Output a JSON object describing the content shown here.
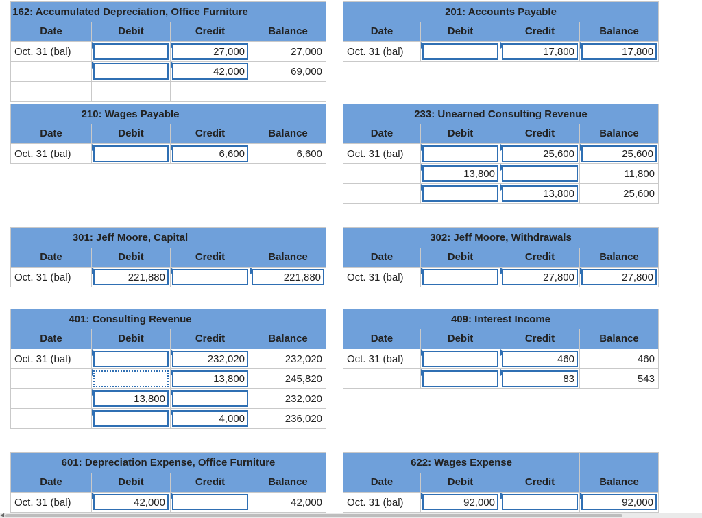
{
  "columns": {
    "date": "Date",
    "debit": "Debit",
    "credit": "Credit",
    "balance": "Balance"
  },
  "accounts": [
    {
      "key": "a162",
      "title": "162: Accumulated Depreciation, Office Furniture",
      "rows": [
        {
          "date": "Oct. 31 (bal)",
          "debit": "",
          "credit": "27,000",
          "balance": "27,000"
        },
        {
          "date": "",
          "debit": "",
          "credit": "42,000",
          "balance": "69,000"
        },
        {
          "date": "",
          "debit": "",
          "credit": "",
          "balance": ""
        }
      ]
    },
    {
      "key": "a201",
      "title": "201: Accounts Payable",
      "rows": [
        {
          "date": "Oct. 31 (bal)",
          "debit": "",
          "credit": "17,800",
          "balance": "17,800"
        }
      ]
    },
    {
      "key": "a210",
      "title": "210: Wages Payable",
      "rows": [
        {
          "date": "Oct. 31 (bal)",
          "debit": "",
          "credit": "6,600",
          "balance": "6,600"
        }
      ]
    },
    {
      "key": "a233",
      "title": "233: Unearned Consulting Revenue",
      "rows": [
        {
          "date": "Oct. 31 (bal)",
          "debit": "",
          "credit": "25,600",
          "balance": "25,600"
        },
        {
          "date": "",
          "debit": "13,800",
          "credit": "",
          "balance": "11,800"
        },
        {
          "date": "",
          "debit": "",
          "credit": "13,800",
          "balance": "25,600"
        }
      ]
    },
    {
      "key": "a301",
      "title": "301: Jeff Moore, Capital",
      "rows": [
        {
          "date": "Oct. 31 (bal)",
          "debit": "221,880",
          "credit": "",
          "balance": "221,880"
        }
      ]
    },
    {
      "key": "a302",
      "title": "302: Jeff Moore, Withdrawals",
      "rows": [
        {
          "date": "Oct. 31 (bal)",
          "debit": "",
          "credit": "27,800",
          "balance": "27,800"
        }
      ]
    },
    {
      "key": "a401",
      "title": "401: Consulting Revenue",
      "rows": [
        {
          "date": "Oct. 31 (bal)",
          "debit": "",
          "credit": "232,020",
          "balance": "232,020"
        },
        {
          "date": "",
          "debit": "",
          "credit": "13,800",
          "balance": "245,820"
        },
        {
          "date": "",
          "debit": "13,800",
          "credit": "",
          "balance": "232,020"
        },
        {
          "date": "",
          "debit": "",
          "credit": "4,000",
          "balance": "236,020"
        }
      ]
    },
    {
      "key": "a409",
      "title": "409: Interest Income",
      "rows": [
        {
          "date": "Oct. 31 (bal)",
          "debit": "",
          "credit": "460",
          "balance": "460"
        },
        {
          "date": "",
          "debit": "",
          "credit": "83",
          "balance": "543"
        }
      ]
    },
    {
      "key": "a601",
      "title": "601: Depreciation Expense, Office Furniture",
      "rows": [
        {
          "date": "Oct. 31 (bal)",
          "debit": "42,000",
          "credit": "",
          "balance": "42,000"
        }
      ]
    },
    {
      "key": "a622",
      "title": "622: Wages Expense",
      "rows": [
        {
          "date": "Oct. 31 (bal)",
          "debit": "92,000",
          "credit": "",
          "balance": "92,000"
        }
      ]
    }
  ]
}
